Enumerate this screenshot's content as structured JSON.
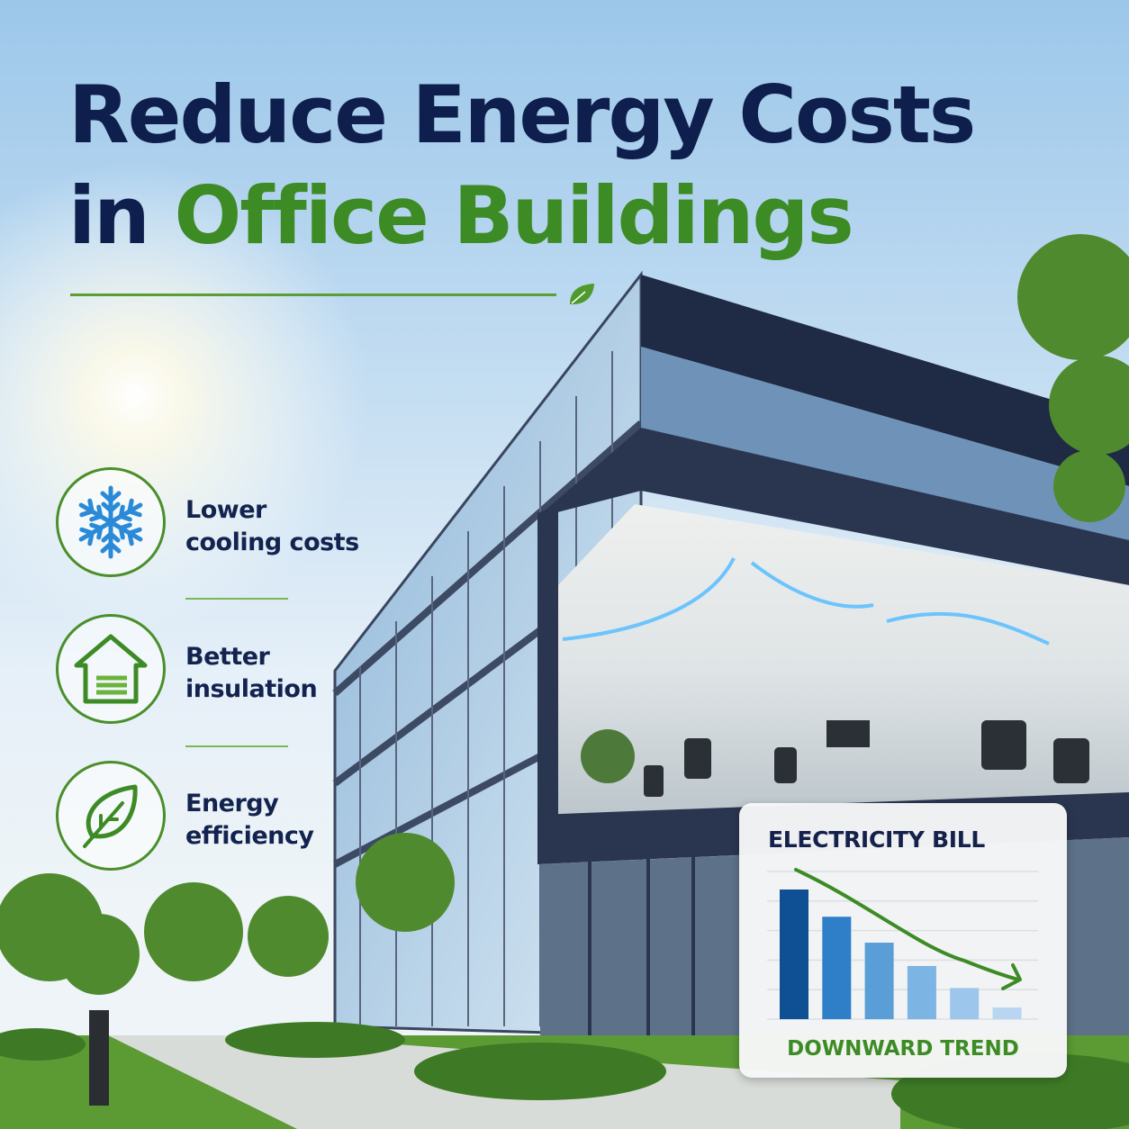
{
  "headline": {
    "line1": "Reduce Energy Costs",
    "line2_prefix": "in",
    "line2_highlight": "Office Buildings"
  },
  "colors": {
    "navy": "#0f1f4d",
    "green": "#3d8b25",
    "snowflake_blue": "#2a8ad8"
  },
  "features": [
    {
      "icon": "snowflake-icon",
      "line1": "Lower",
      "line2": "cooling costs"
    },
    {
      "icon": "house-insulation-icon",
      "line1": "Better",
      "line2": "insulation"
    },
    {
      "icon": "leaf-icon",
      "line1": "Energy",
      "line2": "efficiency"
    }
  ],
  "bill_card": {
    "title": "ELECTRICITY BILL",
    "footer": "DOWNWARD TREND"
  },
  "chart_data": {
    "type": "bar",
    "title": "ELECTRICITY BILL",
    "annotation": "DOWNWARD TREND",
    "values": [
      100,
      79,
      59,
      41,
      24,
      9
    ],
    "bar_colors": [
      "#0f4f94",
      "#2f7fc8",
      "#5a9ed8",
      "#7cb4e3",
      "#9cc6ec",
      "#b8d6f1"
    ],
    "trend_arrow": "down",
    "grid": true,
    "ylim": [
      0,
      100
    ]
  }
}
